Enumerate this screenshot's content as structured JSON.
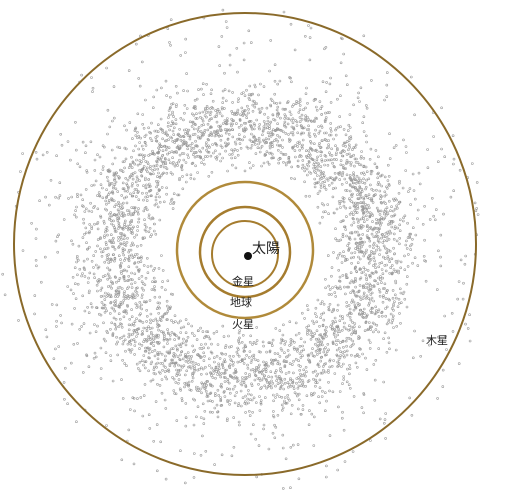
{
  "labels": {
    "sun": "太陽",
    "venus": "金星",
    "earth": "地球",
    "mars": "火星",
    "jupiter": "木星"
  }
}
